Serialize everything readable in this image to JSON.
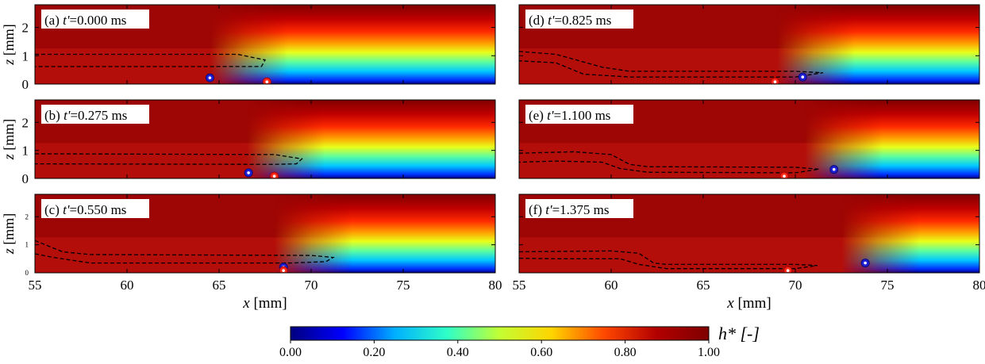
{
  "figure": {
    "colorbar_label": "h* [-]",
    "colorbar_ticks": [
      "0.00",
      "0.20",
      "0.40",
      "0.60",
      "0.80",
      "1.00"
    ],
    "colormap": [
      "#00007f",
      "#0000ff",
      "#00b0ff",
      "#2fffc7",
      "#c3ff33",
      "#ffd400",
      "#ff4800",
      "#b20000",
      "#7f0000"
    ]
  },
  "chart_data": [
    {
      "type": "heatmap",
      "panel_label": "(a) ",
      "time_prefix": "t'",
      "time_value": "=0.000 ms",
      "xlabel": "",
      "ylabel": "z [mm]",
      "xlim": [
        55,
        80
      ],
      "ylim": [
        0,
        2.8
      ],
      "y_ticks": [
        "0",
        "1",
        "2"
      ],
      "x_ticks": [],
      "front_x": 67.5,
      "contour": [
        [
          55,
          1.05
        ],
        [
          66,
          1.05
        ],
        [
          67.5,
          0.85
        ],
        [
          67.3,
          0.62
        ],
        [
          66,
          0.62
        ],
        [
          55,
          0.62
        ]
      ],
      "blue_marker": [
        64.5,
        0.22
      ],
      "red_marker": [
        67.6,
        0.05
      ]
    },
    {
      "type": "heatmap",
      "panel_label": "(b) ",
      "time_prefix": "t'",
      "time_value": "=0.275 ms",
      "xlabel": "",
      "ylabel": "z [mm]",
      "xlim": [
        55,
        80
      ],
      "ylim": [
        0,
        2.8
      ],
      "y_ticks": [
        "0",
        "1",
        "2"
      ],
      "x_ticks": [],
      "front_x": 69.5,
      "contour": [
        [
          55,
          0.88
        ],
        [
          68,
          0.85
        ],
        [
          69.5,
          0.7
        ],
        [
          69.2,
          0.52
        ],
        [
          68,
          0.5
        ],
        [
          55,
          0.52
        ]
      ],
      "blue_marker": [
        66.6,
        0.2
      ],
      "red_marker": [
        68.0,
        0.05
      ]
    },
    {
      "type": "heatmap",
      "panel_label": "(c) ",
      "time_prefix": "t'",
      "time_value": "=0.550 ms",
      "xlabel": "x [mm]",
      "ylabel": "z [mm]",
      "xlim": [
        55,
        80
      ],
      "ylim": [
        0,
        2.8
      ],
      "y_ticks": [
        "0",
        "1",
        "2"
      ],
      "x_ticks": [
        "55",
        "60",
        "65",
        "70",
        "75",
        "80"
      ],
      "front_x": 71.0,
      "contour": [
        [
          55,
          1.15
        ],
        [
          56.5,
          0.75
        ],
        [
          58,
          0.65
        ],
        [
          70,
          0.62
        ],
        [
          71.2,
          0.55
        ],
        [
          70.8,
          0.4
        ],
        [
          69,
          0.35
        ],
        [
          58,
          0.35
        ],
        [
          56,
          0.55
        ],
        [
          55,
          0.68
        ]
      ],
      "blue_marker": [
        68.5,
        0.2
      ],
      "red_marker": [
        68.5,
        0.05
      ]
    },
    {
      "type": "heatmap",
      "panel_label": "(d) ",
      "time_prefix": "t'",
      "time_value": "=0.825 ms",
      "xlabel": "",
      "ylabel": "",
      "xlim": [
        55,
        80
      ],
      "ylim": [
        0,
        2.8
      ],
      "y_ticks": [],
      "x_ticks": [],
      "front_x": 72.0,
      "contour": [
        [
          55,
          1.15
        ],
        [
          57,
          1.05
        ],
        [
          59.5,
          0.6
        ],
        [
          61,
          0.45
        ],
        [
          70,
          0.45
        ],
        [
          71.5,
          0.4
        ],
        [
          70,
          0.25
        ],
        [
          61,
          0.25
        ],
        [
          58.5,
          0.35
        ],
        [
          57,
          0.75
        ],
        [
          55,
          0.82
        ]
      ],
      "blue_marker": [
        70.4,
        0.25
      ],
      "red_marker": [
        68.9,
        0.05
      ]
    },
    {
      "type": "heatmap",
      "panel_label": "(e) ",
      "time_prefix": "t'",
      "time_value": "=1.100 ms",
      "xlabel": "",
      "ylabel": "",
      "xlim": [
        55,
        80
      ],
      "ylim": [
        0,
        2.8
      ],
      "y_ticks": [],
      "x_ticks": [],
      "front_x": 73.5,
      "contour": [
        [
          55,
          0.9
        ],
        [
          58,
          0.95
        ],
        [
          60,
          0.85
        ],
        [
          61,
          0.5
        ],
        [
          62,
          0.42
        ],
        [
          70,
          0.4
        ],
        [
          71.3,
          0.33
        ],
        [
          70,
          0.2
        ],
        [
          62,
          0.22
        ],
        [
          60.5,
          0.35
        ],
        [
          59.5,
          0.58
        ],
        [
          57,
          0.62
        ],
        [
          55,
          0.58
        ]
      ],
      "blue_marker": [
        72.1,
        0.32
      ],
      "red_marker": [
        69.4,
        0.05
      ]
    },
    {
      "type": "heatmap",
      "panel_label": "(f) ",
      "time_prefix": "t'",
      "time_value": "=1.375 ms",
      "xlabel": "x [mm]",
      "ylabel": "",
      "xlim": [
        55,
        80
      ],
      "ylim": [
        0,
        2.8
      ],
      "y_ticks": [],
      "x_ticks": [
        "55",
        "60",
        "65",
        "70",
        "75",
        "80"
      ],
      "front_x": 75.5,
      "contour": [
        [
          55,
          0.75
        ],
        [
          60,
          0.78
        ],
        [
          61.5,
          0.7
        ],
        [
          62.3,
          0.35
        ],
        [
          63,
          0.3
        ],
        [
          70,
          0.3
        ],
        [
          71.2,
          0.26
        ],
        [
          70,
          0.15
        ],
        [
          63,
          0.15
        ],
        [
          61.5,
          0.3
        ],
        [
          60.5,
          0.5
        ],
        [
          57,
          0.5
        ],
        [
          55,
          0.52
        ]
      ],
      "blue_marker": [
        73.8,
        0.35
      ],
      "red_marker": [
        69.6,
        0.05
      ]
    }
  ]
}
